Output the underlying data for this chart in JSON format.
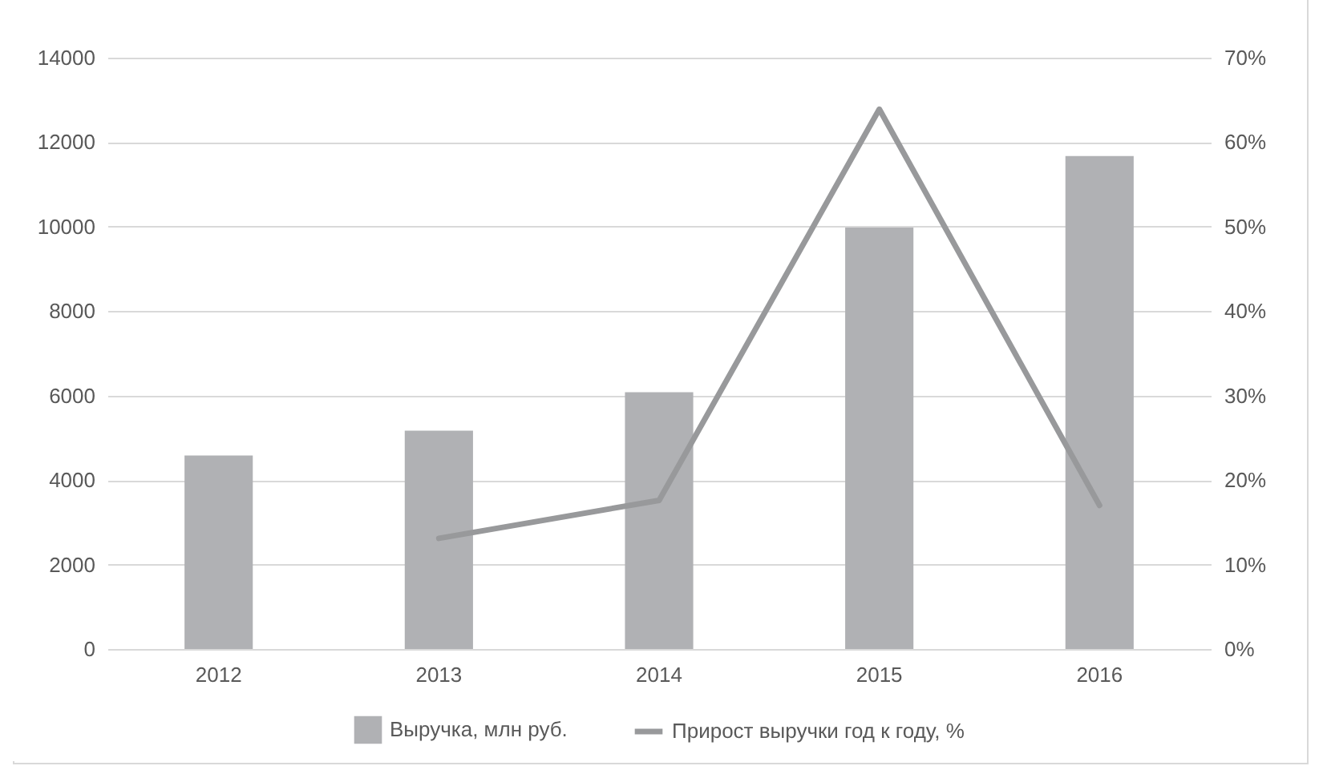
{
  "chart_data": {
    "type": "bar",
    "categories": [
      "2012",
      "2013",
      "2014",
      "2015",
      "2016"
    ],
    "series": [
      {
        "name": "Выручка, млн руб.",
        "color": "#b0b1b4",
        "values": [
          4580,
          5170,
          6080,
          9980,
          11670
        ]
      },
      {
        "name": "Прирост выручки год к году, %",
        "type": "line",
        "axis": "y2",
        "color": "#98999b",
        "values": [
          null,
          13.1,
          17.6,
          63.9,
          17.0
        ]
      }
    ],
    "ylim": [
      0,
      14000
    ],
    "yticks": [
      0,
      2000,
      4000,
      6000,
      8000,
      10000,
      12000,
      14000
    ],
    "y2lim": [
      0,
      70
    ],
    "y2ticks": [
      {
        "value": 0,
        "label": "0%"
      },
      {
        "value": 10,
        "label": "10%"
      },
      {
        "value": 20,
        "label": "20%"
      },
      {
        "value": 30,
        "label": "30%"
      },
      {
        "value": 40,
        "label": "40%"
      },
      {
        "value": 50,
        "label": "50%"
      },
      {
        "value": 60,
        "label": "60%"
      },
      {
        "value": 70,
        "label": "70%"
      }
    ],
    "grid": "y",
    "legend": "bottom"
  }
}
